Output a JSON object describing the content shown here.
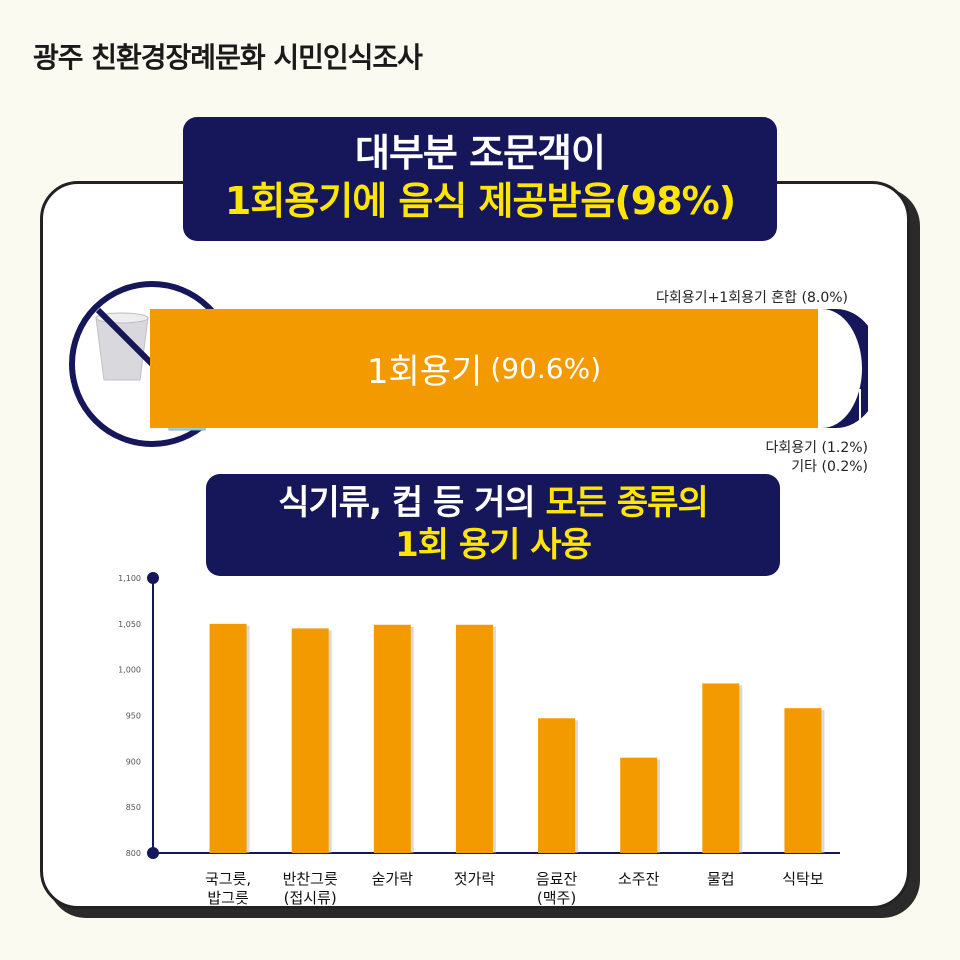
{
  "header": {
    "title": "광주 친환경장례문화 시민인식조사"
  },
  "banner1": {
    "line1": "대부분 조문객이",
    "line2": "1회용기에 음식 제공받음(98%)"
  },
  "usage": {
    "main_label": "1회용기",
    "main_pct": "(90.6%)",
    "mixed_label": "다회용기+1회용기 혼합 (8.0%)",
    "multi_label": "다회용기 (1.2%)",
    "other_label": "기타 (0.2%)",
    "values": {
      "single_use": 90.6,
      "mixed": 8.0,
      "multi_use": 1.2,
      "other": 0.2
    },
    "colors": {
      "single_use": "#f29a00",
      "mixed": "#16165a"
    }
  },
  "banner2": {
    "line1a": "식기류, 컵 등 거의 ",
    "line1b": "모든 종류의",
    "line2": "1회 용기 사용"
  },
  "icons": {
    "cup": "no-disposable-cup-icon"
  },
  "chart_data": {
    "type": "bar",
    "categories": [
      [
        "국그릇,",
        "밥그릇"
      ],
      [
        "반찬그릇",
        "(접시류)"
      ],
      [
        "숟가락"
      ],
      [
        "젓가락"
      ],
      [
        "음료잔",
        "(맥주)"
      ],
      [
        "소주잔"
      ],
      [
        "물컵"
      ],
      [
        "식탁보"
      ]
    ],
    "values": [
      1050,
      1045,
      1049,
      1049,
      947,
      904,
      985,
      958
    ],
    "ylim": [
      800,
      1100
    ],
    "yticks": [
      "800",
      "850",
      "900",
      "950",
      "1,000",
      "1,050",
      "1,100"
    ],
    "color": "#f29a00",
    "axis_color": "#16165a",
    "grid": false
  }
}
